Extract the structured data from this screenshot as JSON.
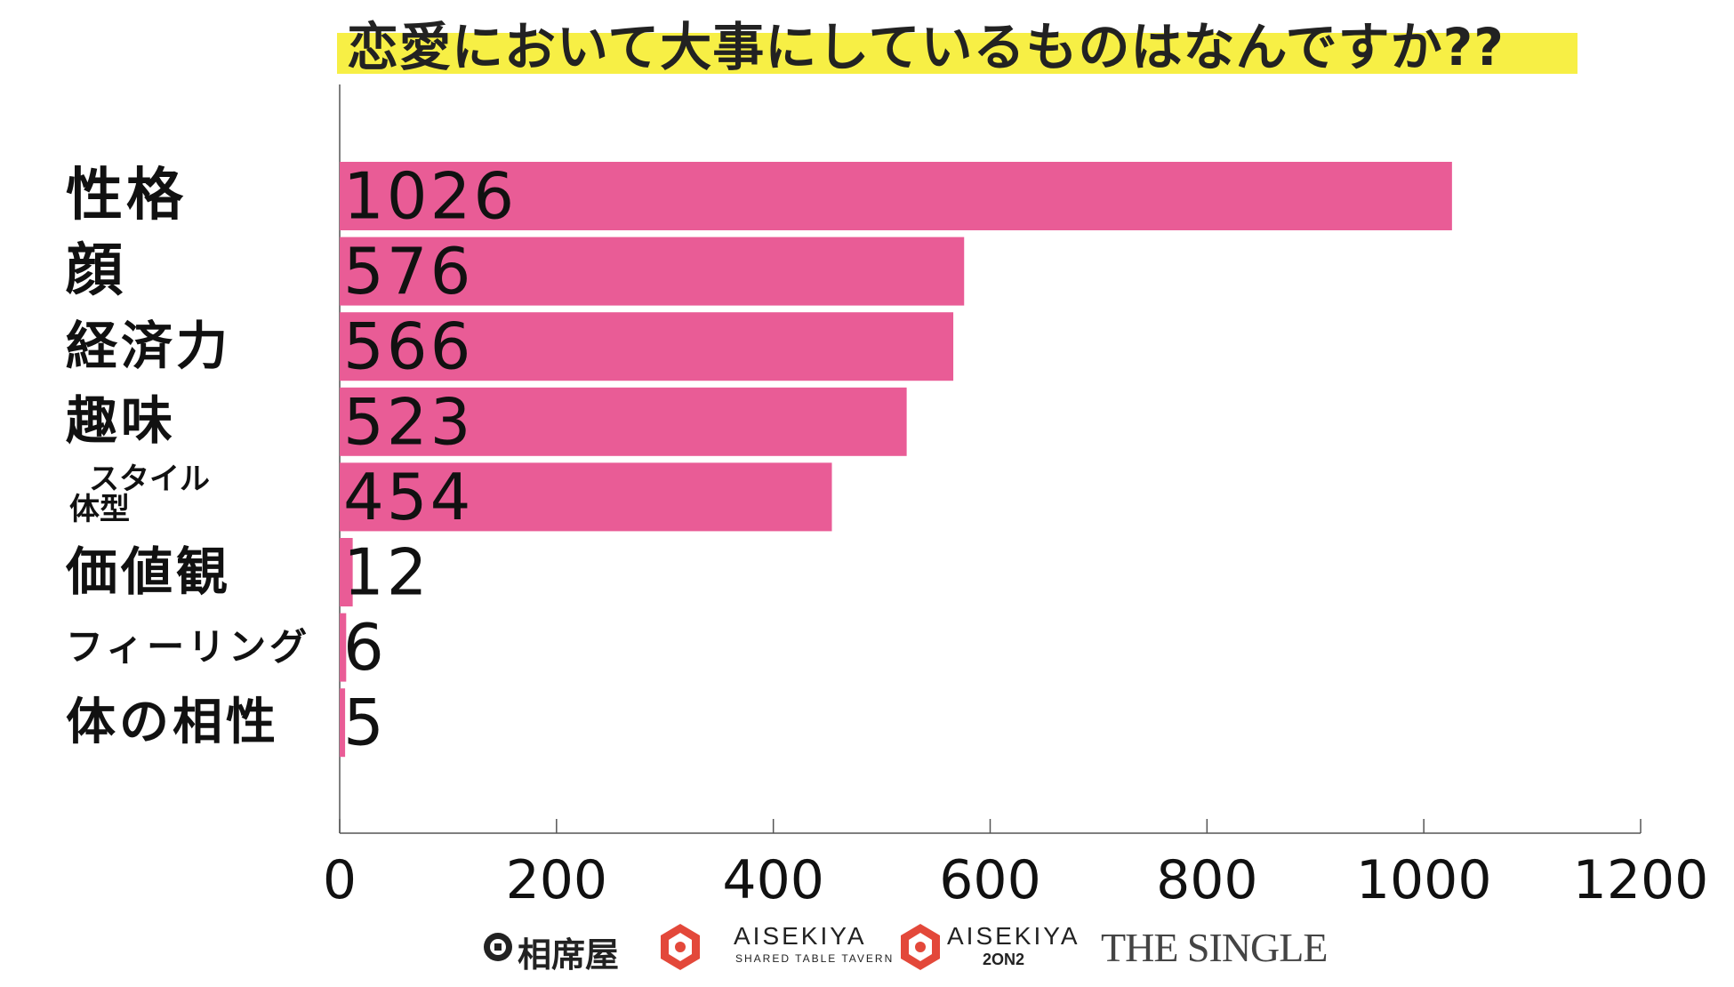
{
  "title": "恋愛において大事にしているものはなんですか??",
  "chart_data": {
    "type": "bar",
    "orientation": "horizontal",
    "title": "恋愛において大事にしているものはなんですか??",
    "categories": [
      {
        "label": "性格"
      },
      {
        "label": "顔"
      },
      {
        "label": "経済力"
      },
      {
        "label": "趣味"
      },
      {
        "label_line1": "スタイル",
        "label_line2": "体型"
      },
      {
        "label": "価値観"
      },
      {
        "label": "フィーリング"
      },
      {
        "label": "体の相性"
      }
    ],
    "values": [
      1026,
      576,
      566,
      523,
      454,
      12,
      6,
      5
    ],
    "data_labels": [
      "1026",
      "576",
      "566",
      "523",
      "454",
      "12",
      "6",
      "5"
    ],
    "xlim": [
      0,
      1200
    ],
    "x_ticks": [
      0,
      200,
      400,
      600,
      800,
      1000,
      1200
    ],
    "x_tick_labels": [
      "0",
      "200",
      "400",
      "600",
      "800",
      "1000",
      "1200"
    ],
    "xlabel": "",
    "ylabel": "",
    "grid": false,
    "legend": "none",
    "bar_color": "#e95c96",
    "title_highlight_color": "#f7ef45"
  },
  "logos": {
    "logo1_text": "相席屋",
    "logo2_text": "AISEKIYA",
    "logo2_sub": "SHARED TABLE TAVERN",
    "logo3_text": "AISEKIYA",
    "logo3_sub": "2ON2",
    "logo4_text": "THE SINGLE",
    "logo_red": "#e3483a"
  }
}
